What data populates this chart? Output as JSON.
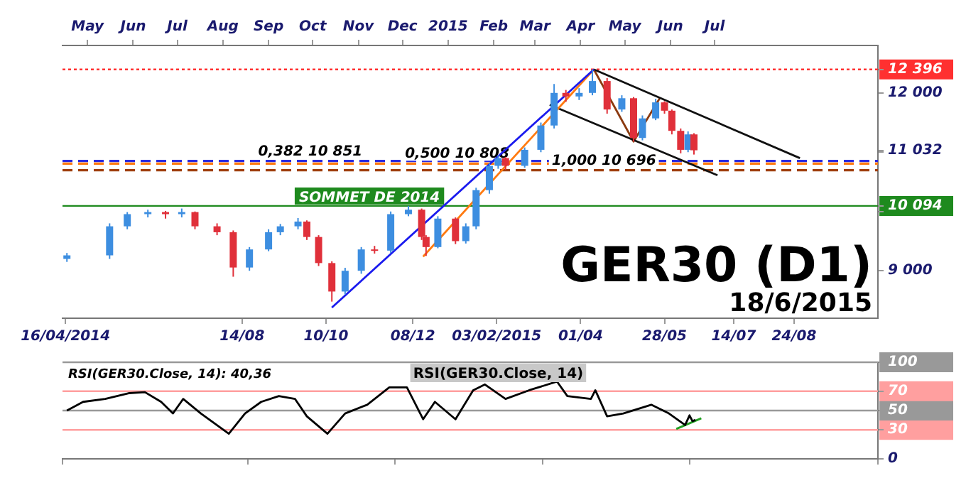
{
  "chart_data": [
    {
      "type": "candlestick",
      "title": "GER30 (D1)",
      "subtitle": "18/6/2015",
      "x": [
        "2014-04-17",
        "2014-05-16",
        "2014-05-28",
        "2014-06-11",
        "2014-06-23",
        "2014-07-04",
        "2014-07-13",
        "2014-07-28",
        "2014-08-08",
        "2014-08-19",
        "2014-09-01",
        "2014-09-09",
        "2014-09-21",
        "2014-09-27",
        "2014-10-05",
        "2014-10-14",
        "2014-10-23",
        "2014-11-03",
        "2014-11-12",
        "2014-11-23",
        "2014-12-05",
        "2014-12-14",
        "2014-12-17",
        "2014-12-25",
        "2015-01-06",
        "2015-01-13",
        "2015-01-20",
        "2015-01-29",
        "2015-02-04",
        "2015-02-09",
        "2015-02-22",
        "2015-03-05",
        "2015-03-14",
        "2015-03-22",
        "2015-03-31",
        "2015-04-09",
        "2015-04-19",
        "2015-04-29",
        "2015-05-07",
        "2015-05-13",
        "2015-05-22",
        "2015-05-28",
        "2015-06-02",
        "2015-06-08",
        "2015-06-13",
        "2015-06-17"
      ],
      "ohlc": [
        [
          9200,
          9300,
          9150,
          9260
        ],
        [
          9260,
          9800,
          9200,
          9750
        ],
        [
          9750,
          9990,
          9700,
          9955
        ],
        [
          9955,
          10030,
          9900,
          9990
        ],
        [
          9990,
          10010,
          9880,
          9955
        ],
        [
          9955,
          10050,
          9900,
          9990
        ],
        [
          9990,
          10000,
          9700,
          9750
        ],
        [
          9750,
          9800,
          9600,
          9650
        ],
        [
          9650,
          9680,
          8900,
          9055
        ],
        [
          9055,
          9400,
          9000,
          9360
        ],
        [
          9360,
          9700,
          9330,
          9650
        ],
        [
          9650,
          9790,
          9600,
          9750
        ],
        [
          9750,
          9890,
          9700,
          9830
        ],
        [
          9830,
          9850,
          9520,
          9570
        ],
        [
          9570,
          9600,
          9080,
          9130
        ],
        [
          9130,
          9160,
          8480,
          8650
        ],
        [
          8650,
          9050,
          8600,
          9000
        ],
        [
          9000,
          9400,
          8950,
          9360
        ],
        [
          9360,
          9420,
          9290,
          9340
        ],
        [
          9340,
          10000,
          9300,
          9955
        ],
        [
          9955,
          10094,
          9920,
          10030
        ],
        [
          10030,
          10050,
          9520,
          9570
        ],
        [
          9570,
          9600,
          9250,
          9400
        ],
        [
          9400,
          9920,
          9380,
          9880
        ],
        [
          9880,
          9900,
          9450,
          9500
        ],
        [
          9500,
          9800,
          9460,
          9750
        ],
        [
          9750,
          10400,
          9700,
          10360
        ],
        [
          10360,
          10810,
          10300,
          10770
        ],
        [
          10770,
          10950,
          10720,
          10900
        ],
        [
          10900,
          10920,
          10700,
          10770
        ],
        [
          10770,
          11080,
          10740,
          11040
        ],
        [
          11040,
          11500,
          11000,
          11450
        ],
        [
          11450,
          12150,
          11400,
          12000
        ],
        [
          12000,
          12050,
          11850,
          11940
        ],
        [
          11940,
          12080,
          11880,
          12000
        ],
        [
          12000,
          12396,
          11960,
          12200
        ],
        [
          12200,
          12250,
          11650,
          11720
        ],
        [
          11720,
          11960,
          11680,
          11910
        ],
        [
          11910,
          11930,
          11180,
          11240
        ],
        [
          11240,
          11620,
          11200,
          11570
        ],
        [
          11570,
          11900,
          11540,
          11840
        ],
        [
          11840,
          11860,
          11650,
          11700
        ],
        [
          11700,
          11720,
          11300,
          11360
        ],
        [
          11360,
          11400,
          10980,
          11040
        ],
        [
          11040,
          11350,
          11000,
          11300
        ],
        [
          11300,
          11320,
          10960,
          11032
        ]
      ],
      "series": [
        {
          "type": "line",
          "color": "#1a1aee",
          "x": [
            "2014-10-14",
            "2015-04-10"
          ],
          "values": [
            8380,
            12396
          ]
        },
        {
          "type": "line",
          "color": "#ff7a10",
          "x": [
            "2014-12-15",
            "2015-04-10"
          ],
          "values": [
            9240,
            12396
          ]
        },
        {
          "type": "line",
          "color": "#111111",
          "x": [
            "2015-04-10",
            "2015-08-28"
          ],
          "values": [
            12396,
            10900
          ]
        },
        {
          "type": "line",
          "color": "#111111",
          "x": [
            "2015-03-11",
            "2015-07-03"
          ],
          "values": [
            11800,
            10610
          ]
        },
        {
          "type": "line",
          "color": "#8b3a10",
          "x": [
            "2015-04-10",
            "2015-05-07",
            "2015-05-25"
          ],
          "values": [
            12396,
            11180,
            11920
          ]
        }
      ],
      "xlim": [
        "2014-04-14",
        "2015-10-20"
      ],
      "xticks": [
        {
          "value": "2014-04-16",
          "label": "16/04/2014"
        },
        {
          "value": "2014-08-14",
          "label": "14/08"
        },
        {
          "value": "2014-10-10",
          "label": "10/10"
        },
        {
          "value": "2014-12-08",
          "label": "08/12"
        },
        {
          "value": "2015-02-03",
          "label": "03/02/2015"
        },
        {
          "value": "2015-04-01",
          "label": "01/04"
        },
        {
          "value": "2015-05-28",
          "label": "28/05"
        },
        {
          "value": "2015-07-14",
          "label": "14/07"
        },
        {
          "value": "2015-08-24",
          "label": "24/08"
        }
      ],
      "x2lim": [
        "2014-04-14",
        "2015-10-20"
      ],
      "x2ticks": [
        {
          "value": "2014-05-01",
          "label": "May"
        },
        {
          "value": "2014-06-01",
          "label": "Jun"
        },
        {
          "value": "2014-07-01",
          "label": "Jul"
        },
        {
          "value": "2014-08-01",
          "label": "Aug"
        },
        {
          "value": "2014-09-01",
          "label": "Sep"
        },
        {
          "value": "2014-10-01",
          "label": "Oct"
        },
        {
          "value": "2014-11-01",
          "label": "Nov"
        },
        {
          "value": "2014-12-01",
          "label": "Dec"
        },
        {
          "value": "2015-01-01",
          "label": "2015"
        },
        {
          "value": "2015-02-01",
          "label": "Feb"
        },
        {
          "value": "2015-03-01",
          "label": "Mar"
        },
        {
          "value": "2015-04-01",
          "label": "Apr"
        },
        {
          "value": "2015-05-01",
          "label": "May"
        },
        {
          "value": "2015-06-01",
          "label": "Jun"
        },
        {
          "value": "2015-07-01",
          "label": "Jul"
        }
      ],
      "ylim": [
        8200,
        12800
      ],
      "yticks": [
        {
          "value": 9000,
          "label": "9 000"
        },
        {
          "value": 10000,
          "label": null
        },
        {
          "value": 10094,
          "label": "10 094"
        },
        {
          "value": 11000,
          "label": null
        },
        {
          "value": 11032,
          "label": "11 032"
        },
        {
          "value": 12000,
          "label": "12 000"
        },
        {
          "value": 12396,
          "label": "12 396"
        }
      ],
      "ref_lines": [
        {
          "axis": "y",
          "value": 12396,
          "color": "#ff3030",
          "line_style": "dotted"
        },
        {
          "axis": "y",
          "value": 10094,
          "label": "SOMMET DE 2014",
          "color": "#1e8a1e",
          "line_style": "solid"
        },
        {
          "axis": "y",
          "value": 10851,
          "label": "0,382 10 851",
          "color": "#2a2ae0",
          "line_style": "dashed"
        },
        {
          "axis": "y",
          "value": 10808,
          "label": "0,500 10 808",
          "color": "#ff7a10",
          "line_style": "dashed"
        },
        {
          "axis": "y",
          "value": 10696,
          "label": "1,000 10 696",
          "color": "#a0400f",
          "line_style": "dashed"
        }
      ]
    },
    {
      "type": "line",
      "title": "RSI(GER30.Close, 14)",
      "annotations": [
        "RSI(GER30.Close, 14): 40,36"
      ],
      "series": [
        {
          "color": "#000000",
          "x": [
            "2014-04-17",
            "2014-04-28",
            "2014-05-13",
            "2014-05-29",
            "2014-06-09",
            "2014-06-20",
            "2014-06-28",
            "2014-07-05",
            "2014-07-17",
            "2014-08-05",
            "2014-08-16",
            "2014-08-27",
            "2014-09-08",
            "2014-09-19",
            "2014-09-27",
            "2014-10-11",
            "2014-10-23",
            "2014-11-07",
            "2014-11-22",
            "2014-12-04",
            "2014-12-15",
            "2014-12-23",
            "2015-01-06",
            "2015-01-18",
            "2015-01-26",
            "2015-02-09",
            "2015-02-25",
            "2015-03-16",
            "2015-03-23",
            "2015-04-08",
            "2015-04-11",
            "2015-04-19",
            "2015-04-30",
            "2015-05-19",
            "2015-05-31",
            "2015-06-11",
            "2015-06-14",
            "2015-06-16",
            "2015-06-18"
          ],
          "values": [
            50,
            59,
            62,
            68,
            69,
            59,
            47,
            62,
            47,
            26,
            47,
            59,
            65,
            62,
            44,
            26,
            47,
            56,
            74,
            74,
            41,
            59,
            41,
            71,
            77,
            62,
            71,
            80,
            65,
            62,
            71,
            44,
            47,
            56,
            47,
            35,
            45,
            39,
            40.36
          ]
        },
        {
          "type": "line",
          "color": "#22a022",
          "x": [
            "2015-06-05",
            "2015-06-22"
          ],
          "values": [
            31,
            42
          ]
        }
      ],
      "xlim": [
        "2014-04-14",
        "2015-10-20"
      ],
      "ylim": [
        0,
        100
      ],
      "yticks": [
        0,
        30,
        50,
        70,
        100
      ],
      "tick_labels": "y",
      "ref_lines": [
        {
          "axis": "y",
          "value": 30,
          "color": "#ff9f9f",
          "line_style": "solid"
        },
        {
          "axis": "y",
          "value": 50,
          "color": "#999999",
          "line_style": "solid"
        },
        {
          "axis": "y",
          "value": 70,
          "color": "#ff9f9f",
          "line_style": "solid"
        },
        {
          "axis": "y",
          "value": 100,
          "color": "#999999",
          "line_style": "solid"
        }
      ]
    }
  ]
}
